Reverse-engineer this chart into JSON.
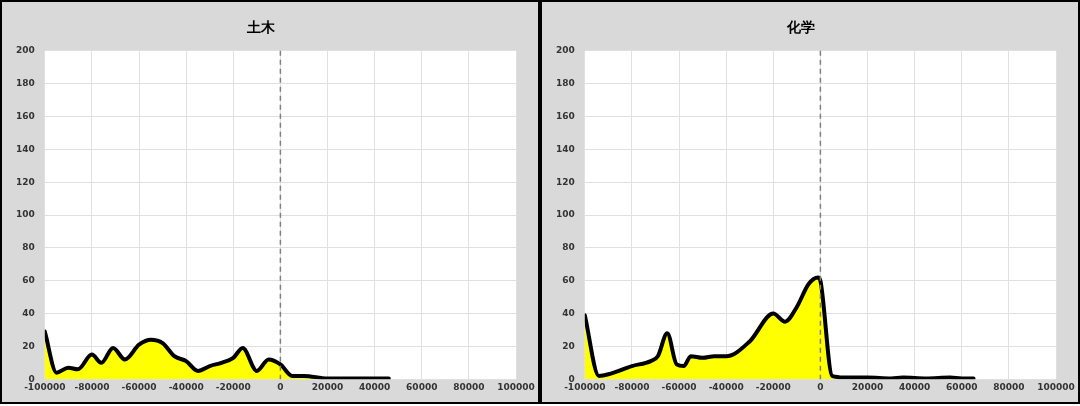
{
  "chart_data": [
    {
      "type": "area",
      "title": "土木",
      "xlim": [
        -100000,
        100000
      ],
      "xticks": [
        -100000,
        -80000,
        -60000,
        -40000,
        -20000,
        0,
        20000,
        40000,
        60000,
        80000,
        100000
      ],
      "ylim": [
        0,
        200
      ],
      "yticks": [
        0,
        20,
        40,
        60,
        80,
        100,
        120,
        140,
        160,
        180,
        200
      ],
      "grid": true,
      "legend": false,
      "x": [
        -100000,
        -95000,
        -90000,
        -86000,
        -80000,
        -76000,
        -71000,
        -66000,
        -60000,
        -55000,
        -50000,
        -45000,
        -40000,
        -35000,
        -30000,
        -25000,
        -20000,
        -16000,
        -10000,
        -5000,
        0,
        5000,
        10000,
        20000,
        30000,
        46000
      ],
      "series": [
        {
          "color": "#ffff00",
          "values": [
            29,
            4,
            7,
            6,
            15,
            10,
            19,
            12,
            21,
            24,
            22,
            14,
            11,
            5,
            8,
            10,
            13,
            19,
            5,
            12,
            9,
            2,
            2,
            0.5,
            0.5,
            0.5
          ]
        }
      ],
      "ref_lines": [
        {
          "axis": "x",
          "value": 0,
          "color": "#7f7f7f",
          "line_style": "dashed"
        }
      ]
    },
    {
      "type": "area",
      "title": "化学",
      "xlim": [
        -100000,
        100000
      ],
      "xticks": [
        -100000,
        -80000,
        -60000,
        -40000,
        -20000,
        0,
        20000,
        40000,
        60000,
        80000,
        100000
      ],
      "ylim": [
        0,
        200
      ],
      "yticks": [
        0,
        20,
        40,
        60,
        80,
        100,
        120,
        140,
        160,
        180,
        200
      ],
      "grid": true,
      "legend": false,
      "x": [
        -100000,
        -94000,
        -90000,
        -80000,
        -72000,
        -69000,
        -65000,
        -61000,
        -58000,
        -55000,
        -50000,
        -45000,
        -40000,
        -30000,
        -20000,
        -15000,
        -10000,
        -5000,
        -1000,
        0,
        5000,
        10000,
        20000,
        30000,
        35000,
        45000,
        55000,
        60000,
        65000
      ],
      "series": [
        {
          "color": "#ffff00",
          "values": [
            39,
            2,
            3,
            8,
            11,
            14,
            28,
            9,
            8,
            14,
            13,
            14,
            14,
            23,
            40,
            35,
            44,
            58,
            62,
            60,
            2,
            1,
            1,
            0.5,
            1,
            0.5,
            1,
            0.5,
            0.5
          ]
        }
      ],
      "ref_lines": [
        {
          "axis": "x",
          "value": 0,
          "color": "#7f7f7f",
          "line_style": "dashed"
        }
      ]
    }
  ]
}
